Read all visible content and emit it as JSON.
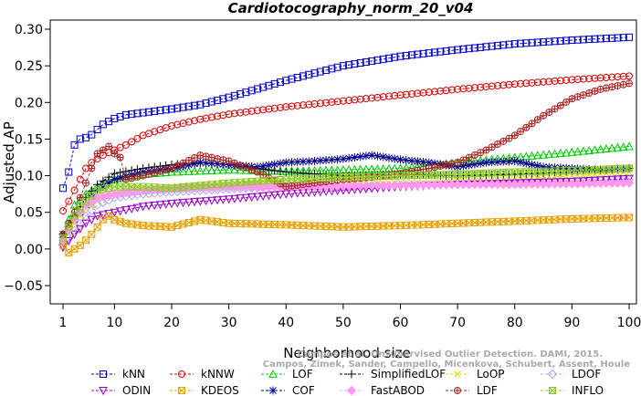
{
  "chart_data": {
    "type": "line",
    "title": "Cardiotocography_norm_20_v04",
    "xlabel": "Neighborhood size",
    "ylabel": "Adjusted AP",
    "xlim": [
      1,
      100
    ],
    "ylim": [
      -0.05,
      0.3
    ],
    "xticks": [
      1,
      10,
      20,
      30,
      40,
      50,
      60,
      70,
      80,
      90,
      100
    ],
    "yticks": [
      -0.05,
      0.0,
      0.05,
      0.1,
      0.15,
      0.2,
      0.25,
      0.3
    ],
    "ytick_labels": [
      "−0.05",
      "0.00",
      "0.05",
      "0.10",
      "0.15",
      "0.20",
      "0.25",
      "0.30"
    ],
    "grid": false,
    "legend_position": "bottom",
    "watermark": [
      "Campos et al. Unsupervised Outlier Detection. DAMI, 2015.",
      "Campos, Zimek, Sander, Campello, Micenkova, Schubert, Assent, Houle"
    ],
    "series": [
      {
        "name": "kNN",
        "color": "#0000cc",
        "marker": "square",
        "x": [
          1,
          2,
          3,
          4,
          5,
          6,
          7,
          8,
          10,
          12,
          15,
          20,
          25,
          30,
          40,
          50,
          60,
          70,
          80,
          90,
          100
        ],
        "y": [
          0.083,
          0.105,
          0.142,
          0.15,
          0.152,
          0.156,
          0.163,
          0.17,
          0.178,
          0.183,
          0.186,
          0.191,
          0.197,
          0.207,
          0.23,
          0.25,
          0.263,
          0.272,
          0.28,
          0.285,
          0.289
        ]
      },
      {
        "name": "kNNW",
        "color": "#dd0000",
        "marker": "circle",
        "x": [
          1,
          2,
          3,
          4,
          5,
          6,
          8,
          10,
          12,
          15,
          20,
          25,
          30,
          40,
          50,
          60,
          70,
          80,
          90,
          100
        ],
        "y": [
          0.052,
          0.065,
          0.08,
          0.095,
          0.11,
          0.118,
          0.128,
          0.135,
          0.142,
          0.155,
          0.168,
          0.177,
          0.184,
          0.194,
          0.202,
          0.21,
          0.218,
          0.225,
          0.231,
          0.236
        ]
      },
      {
        "name": "LOF",
        "color": "#00cc00",
        "marker": "triangle",
        "x": [
          1,
          3,
          5,
          7,
          10,
          15,
          20,
          30,
          40,
          50,
          60,
          70,
          80,
          90,
          100
        ],
        "y": [
          0.02,
          0.06,
          0.075,
          0.085,
          0.095,
          0.102,
          0.105,
          0.108,
          0.106,
          0.108,
          0.11,
          0.118,
          0.125,
          0.132,
          0.14
        ]
      },
      {
        "name": "SimplifiedLOF",
        "color": "#000000",
        "marker": "plus",
        "x": [
          1,
          3,
          5,
          7,
          10,
          15,
          20,
          25,
          30,
          40,
          50,
          60,
          70,
          80,
          90,
          100
        ],
        "y": [
          0.02,
          0.045,
          0.07,
          0.088,
          0.103,
          0.11,
          0.115,
          0.118,
          0.115,
          0.105,
          0.1,
          0.102,
          0.1,
          0.102,
          0.105,
          0.11
        ]
      },
      {
        "name": "LoOP",
        "color": "#e6d800",
        "marker": "cross",
        "x": [
          1,
          3,
          5,
          7,
          10,
          15,
          20,
          30,
          40,
          50,
          60,
          70,
          80,
          90,
          100
        ],
        "y": [
          0.01,
          0.035,
          0.055,
          0.065,
          0.075,
          0.08,
          0.085,
          0.09,
          0.09,
          0.088,
          0.09,
          0.092,
          0.095,
          0.1,
          0.105
        ]
      },
      {
        "name": "LDOF",
        "color": "#aaaaee",
        "marker": "diamond",
        "x": [
          1,
          3,
          5,
          7,
          10,
          15,
          20,
          30,
          40,
          50,
          60,
          70,
          80,
          90,
          100
        ],
        "y": [
          0.005,
          0.025,
          0.045,
          0.06,
          0.07,
          0.075,
          0.078,
          0.082,
          0.085,
          0.085,
          0.087,
          0.088,
          0.09,
          0.092,
          0.095
        ]
      },
      {
        "name": "ODIN",
        "color": "#9900cc",
        "marker": "triangle-down",
        "x": [
          1,
          3,
          5,
          7,
          10,
          15,
          20,
          30,
          40,
          50,
          60,
          70,
          80,
          90,
          100
        ],
        "y": [
          0.002,
          0.02,
          0.035,
          0.045,
          0.05,
          0.058,
          0.062,
          0.068,
          0.075,
          0.08,
          0.085,
          0.088,
          0.09,
          0.092,
          0.096
        ]
      },
      {
        "name": "KDEOS",
        "color": "#e6a000",
        "marker": "square-x",
        "x": [
          1,
          2,
          3,
          4,
          5,
          6,
          7,
          8,
          9,
          10,
          12,
          15,
          20,
          25,
          30,
          40,
          50,
          60,
          70,
          80,
          90,
          100
        ],
        "y": [
          0.005,
          -0.005,
          0.0,
          0.005,
          0.012,
          0.02,
          0.03,
          0.04,
          0.045,
          0.04,
          0.035,
          0.032,
          0.03,
          0.04,
          0.035,
          0.033,
          0.03,
          0.032,
          0.035,
          0.038,
          0.041,
          0.043
        ]
      },
      {
        "name": "COF",
        "color": "#000088",
        "marker": "asterisk",
        "x": [
          1,
          3,
          5,
          7,
          10,
          15,
          20,
          25,
          30,
          35,
          40,
          45,
          50,
          55,
          60,
          65,
          70,
          75,
          80,
          85,
          90,
          95,
          100
        ],
        "y": [
          0.02,
          0.04,
          0.06,
          0.08,
          0.095,
          0.105,
          0.11,
          0.118,
          0.115,
          0.112,
          0.118,
          0.12,
          0.123,
          0.128,
          0.122,
          0.118,
          0.112,
          0.118,
          0.12,
          0.112,
          0.11,
          0.108,
          0.11
        ]
      },
      {
        "name": "FastABOD",
        "color": "#ff99ee",
        "marker": "diamond-filled",
        "x": [
          1,
          3,
          5,
          7,
          10,
          15,
          20,
          30,
          40,
          50,
          60,
          70,
          80,
          90,
          100
        ],
        "y": [
          0.012,
          0.04,
          0.06,
          0.07,
          0.075,
          0.08,
          0.082,
          0.085,
          0.085,
          0.086,
          0.087,
          0.088,
          0.088,
          0.089,
          0.09
        ]
      },
      {
        "name": "LDF",
        "color": "#aa2222",
        "marker": "circle-plus",
        "x": [
          1,
          3,
          5,
          7,
          9,
          10,
          11,
          12,
          15,
          20,
          25,
          30,
          35,
          40,
          45,
          50,
          55,
          60,
          65,
          70,
          75,
          80,
          85,
          90,
          95,
          100
        ],
        "y": [
          0.02,
          0.05,
          0.09,
          0.13,
          0.14,
          0.13,
          0.125,
          0.095,
          0.1,
          0.11,
          0.128,
          0.12,
          0.105,
          0.085,
          0.09,
          0.095,
          0.098,
          0.103,
          0.11,
          0.118,
          0.135,
          0.155,
          0.182,
          0.205,
          0.218,
          0.226
        ]
      },
      {
        "name": "INFLO",
        "color": "#88cc22",
        "marker": "square-x",
        "x": [
          1,
          3,
          5,
          7,
          10,
          15,
          20,
          30,
          40,
          50,
          60,
          70,
          80,
          90,
          100
        ],
        "y": [
          0.015,
          0.045,
          0.065,
          0.08,
          0.085,
          0.085,
          0.083,
          0.09,
          0.095,
          0.098,
          0.1,
          0.102,
          0.105,
          0.107,
          0.11
        ]
      }
    ]
  }
}
